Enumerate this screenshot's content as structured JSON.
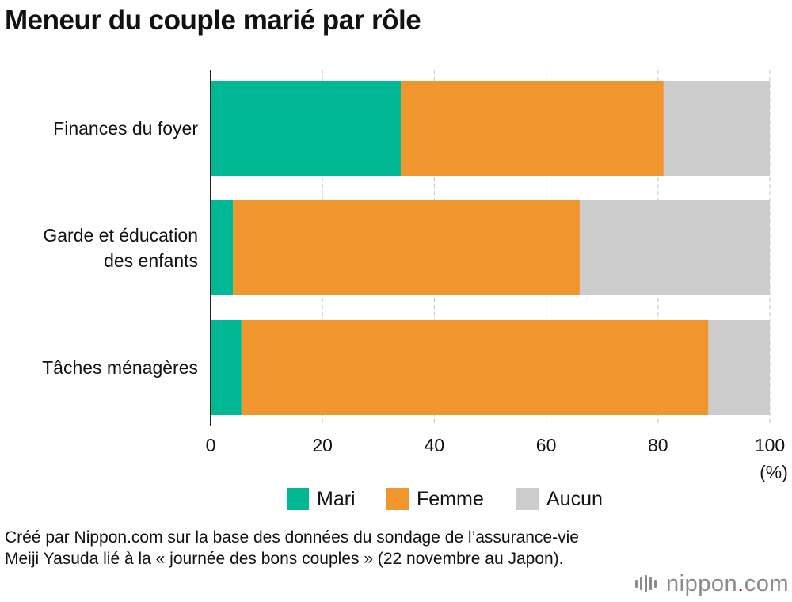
{
  "title": "Meneur du couple marié par rôle",
  "chart_data": {
    "type": "bar",
    "orientation": "horizontal",
    "stacked": true,
    "categories": [
      "Finances du foyer",
      "Garde et éducation des enfants",
      "Tâches ménagères"
    ],
    "category_lines": [
      [
        "Finances du foyer"
      ],
      [
        "Garde et éducation",
        "des enfants"
      ],
      [
        "Tâches ménagères"
      ]
    ],
    "series": [
      {
        "name": "Mari",
        "color": "#00b894",
        "values": [
          34.0,
          4.0,
          5.5
        ]
      },
      {
        "name": "Femme",
        "color": "#f0962e",
        "values": [
          47.0,
          62.0,
          83.5
        ]
      },
      {
        "name": "Aucun",
        "color": "#cccccc",
        "values": [
          19.0,
          34.0,
          11.0
        ]
      }
    ],
    "xlim": [
      0,
      100
    ],
    "xticks": [
      0,
      20,
      40,
      60,
      80,
      100
    ],
    "xticklabels": [
      "0",
      "20",
      "40",
      "60",
      "80",
      "100"
    ],
    "xunit": "(%)",
    "grid": true,
    "legend_position": "bottom"
  },
  "legend": {
    "items": [
      {
        "label": "Mari",
        "color": "#00b894"
      },
      {
        "label": "Femme",
        "color": "#f0962e"
      },
      {
        "label": "Aucun",
        "color": "#cccccc"
      }
    ]
  },
  "source": "Créé par Nippon.com sur la base des données du sondage de l’assurance-vie Meiji Yasuda lié à la « journée des bons couples » (22 novembre au Japon).",
  "logo": {
    "name": "nippon",
    "dot": ".",
    "suffix": "com",
    "accent_color": "#e60012"
  }
}
